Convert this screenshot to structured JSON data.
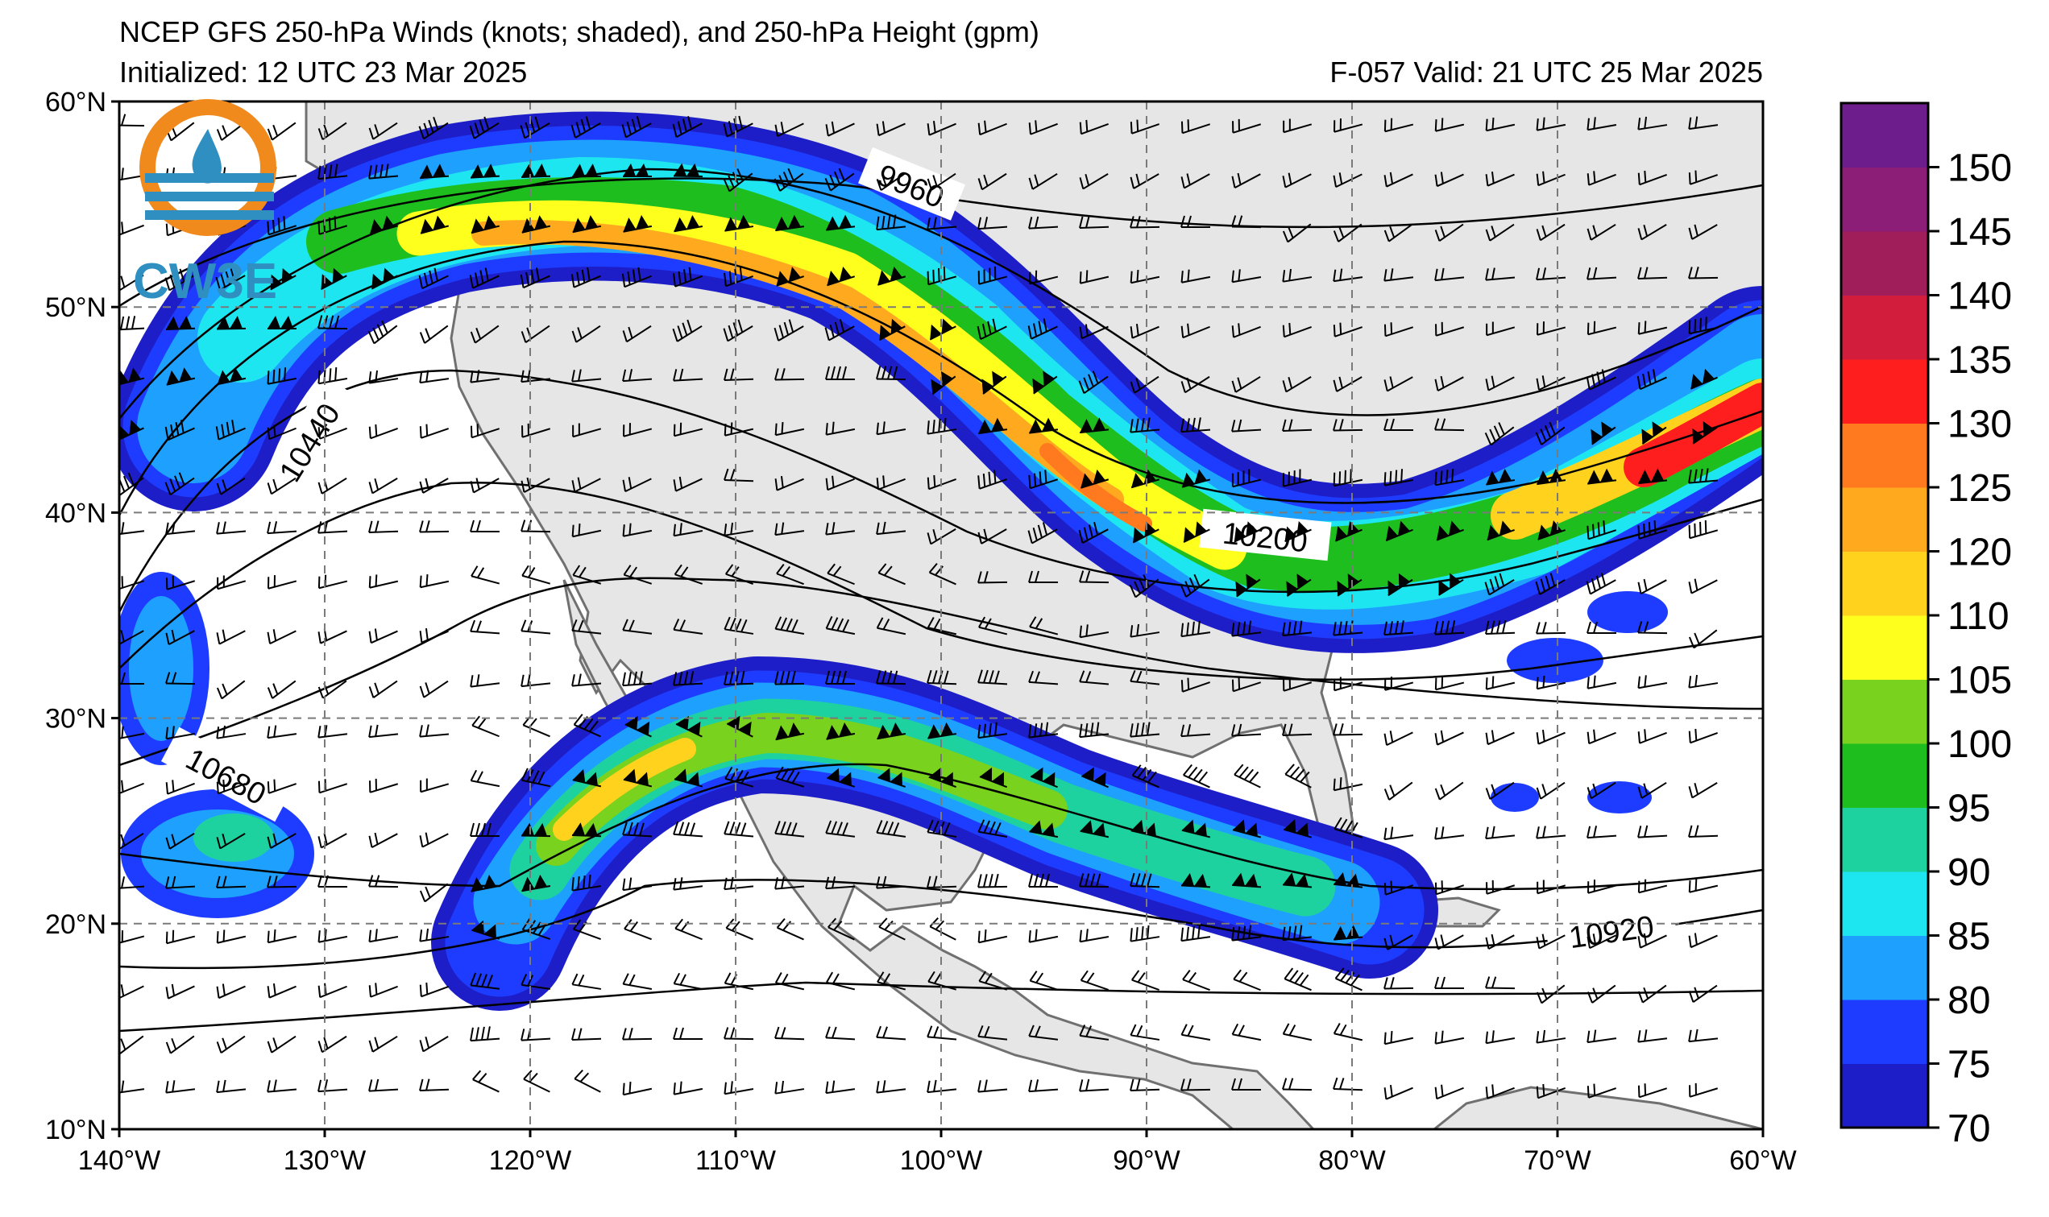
{
  "header": {
    "title": "NCEP GFS 250-hPa Winds (knots; shaded), and 250-hPa Height (gpm)",
    "initialized": "Initialized: 12 UTC 23 Mar 2025",
    "valid": "F-057  Valid: 21 UTC 25 Mar 2025"
  },
  "logo": {
    "text": "CW3E",
    "color": "#2f8fc0",
    "accent": "#f08a1c"
  },
  "map": {
    "lon_range": [
      -140,
      -60
    ],
    "lat_range": [
      10,
      60
    ],
    "lon_ticks": [
      "140°W",
      "130°W",
      "120°W",
      "110°W",
      "100°W",
      "90°W",
      "80°W",
      "70°W",
      "60°W"
    ],
    "lat_ticks": [
      "60°N",
      "50°N",
      "40°N",
      "30°N",
      "20°N",
      "10°N"
    ],
    "grid": "dashed",
    "land_color": "#e6e6e6",
    "height_labels": [
      "9960",
      "10200",
      "10440",
      "10680",
      "10920"
    ]
  },
  "colorbar": {
    "levels": [
      "70",
      "75",
      "80",
      "85",
      "90",
      "95",
      "100",
      "105",
      "110",
      "120",
      "125",
      "130",
      "135",
      "140",
      "145",
      "150"
    ],
    "colors": [
      "#1e1ec8",
      "#1e3cff",
      "#1ea0ff",
      "#1ee6f0",
      "#1ed2a0",
      "#1ebe1e",
      "#78d21e",
      "#ffff1e",
      "#ffd21e",
      "#ffaa1e",
      "#ff7a1e",
      "#ff1e1e",
      "#d21e3c",
      "#a01e5a",
      "#8c1e78",
      "#6e1e8c"
    ]
  }
}
